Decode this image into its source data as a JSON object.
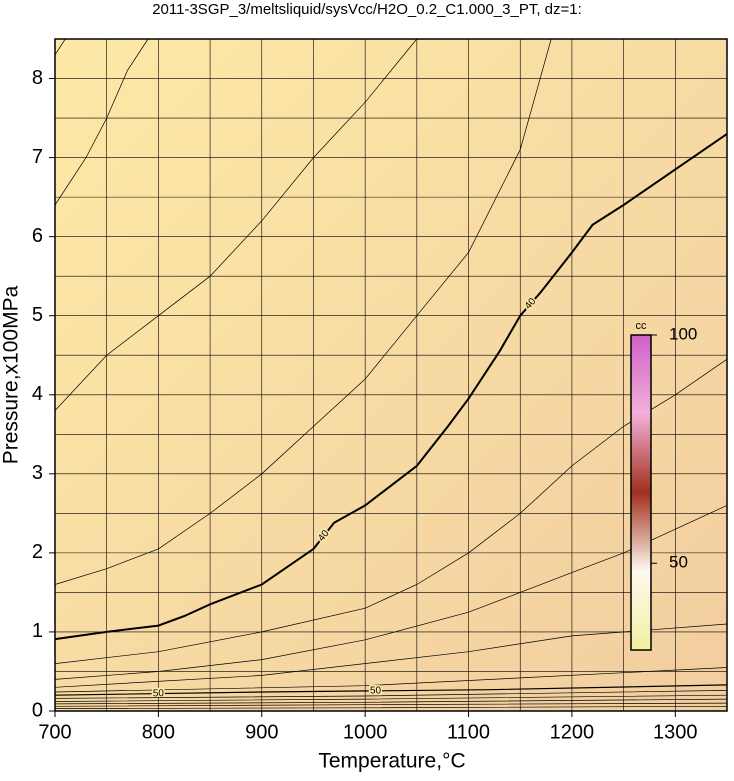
{
  "chart_data": {
    "type": "contour",
    "title": "2011-3SGP_3/meltsliquid/sysVcc/H2O_0.2_C1.000_3_PT, dz=1:",
    "x_label": "Temperature,°C",
    "y_label": "Pressure,x100MPa",
    "xlim": [
      700,
      1350
    ],
    "ylim": [
      0,
      8.5
    ],
    "xticks": [
      700,
      800,
      900,
      1000,
      1100,
      1200,
      1300
    ],
    "yticks": [
      0,
      1,
      2,
      3,
      4,
      5,
      6,
      7,
      8
    ],
    "xgrid": [
      700,
      750,
      800,
      850,
      900,
      950,
      1000,
      1050,
      1100,
      1150,
      1200,
      1250,
      1300,
      1350
    ],
    "ygrid": [
      0.5,
      1,
      1.5,
      2,
      2.5,
      3,
      3.5,
      4,
      4.5,
      5,
      5.5,
      6,
      6.5,
      7,
      7.5,
      8
    ],
    "colorbar": {
      "label": "cc",
      "clim": [
        31,
        100
      ],
      "ticks": [
        50,
        100
      ],
      "colors": [
        "#f3f0a0",
        "#fff8f0",
        "#a0301c",
        "#f2b0d8",
        "#d060c8"
      ]
    },
    "background": [
      "#fde9a6",
      "#f2cda0"
    ],
    "contours": [
      {
        "width": 0.7,
        "x": [
          700,
          710
        ],
        "y": [
          8.3,
          8.5
        ]
      },
      {
        "width": 0.7,
        "x": [
          700,
          730,
          750,
          770,
          790
        ],
        "y": [
          6.4,
          7.0,
          7.5,
          8.1,
          8.5
        ]
      },
      {
        "width": 0.7,
        "x": [
          700,
          750,
          800,
          850,
          900,
          950,
          1000,
          1050
        ],
        "y": [
          3.8,
          4.5,
          5.0,
          5.5,
          6.2,
          7.0,
          7.7,
          8.5
        ]
      },
      {
        "width": 0.7,
        "x": [
          700,
          750,
          800,
          850,
          900,
          950,
          1000,
          1050,
          1100,
          1150,
          1180
        ],
        "y": [
          1.6,
          1.8,
          2.05,
          2.5,
          3.0,
          3.6,
          4.2,
          5.0,
          5.8,
          7.1,
          8.5
        ]
      },
      {
        "width": 2,
        "level": 40,
        "x": [
          700,
          750,
          800,
          825,
          850,
          900,
          950,
          970,
          1000,
          1050,
          1080,
          1100,
          1130,
          1150,
          1170,
          1200,
          1220,
          1250,
          1300,
          1350
        ],
        "y": [
          0.91,
          1.0,
          1.08,
          1.2,
          1.35,
          1.6,
          2.05,
          2.38,
          2.6,
          3.1,
          3.6,
          3.95,
          4.55,
          5.0,
          5.3,
          5.8,
          6.15,
          6.4,
          6.85,
          7.3
        ]
      },
      {
        "width": 0.7,
        "x": [
          700,
          800,
          900,
          1000,
          1050,
          1100,
          1150,
          1200,
          1250,
          1300,
          1350
        ],
        "y": [
          0.6,
          0.75,
          1.0,
          1.3,
          1.6,
          2.0,
          2.5,
          3.1,
          3.6,
          4.0,
          4.45
        ]
      },
      {
        "width": 0.7,
        "x": [
          700,
          800,
          900,
          1000,
          1100,
          1200,
          1250,
          1300,
          1350
        ],
        "y": [
          0.4,
          0.5,
          0.65,
          0.9,
          1.25,
          1.75,
          2.0,
          2.3,
          2.6
        ]
      },
      {
        "width": 0.7,
        "x": [
          700,
          900,
          1100,
          1200,
          1350
        ],
        "y": [
          0.3,
          0.45,
          0.75,
          0.95,
          1.1
        ]
      },
      {
        "width": 0.7,
        "x": [
          700,
          1000,
          1350
        ],
        "y": [
          0.24,
          0.32,
          0.55
        ]
      },
      {
        "width": 1.2,
        "level": 50,
        "x": [
          700,
          900,
          1120,
          1350
        ],
        "y": [
          0.2,
          0.24,
          0.27,
          0.33
        ]
      },
      {
        "width": 0.7,
        "x": [
          700,
          1000,
          1350
        ],
        "y": [
          0.16,
          0.19,
          0.26
        ]
      },
      {
        "width": 0.7,
        "x": [
          700,
          1000,
          1350
        ],
        "y": [
          0.12,
          0.15,
          0.2
        ]
      },
      {
        "width": 0.7,
        "x": [
          700,
          1000,
          1350
        ],
        "y": [
          0.09,
          0.11,
          0.15
        ]
      },
      {
        "width": 0.7,
        "x": [
          700,
          1000,
          1350
        ],
        "y": [
          0.06,
          0.08,
          0.1
        ]
      },
      {
        "width": 0.7,
        "x": [
          700,
          1000,
          1350
        ],
        "y": [
          0.03,
          0.04,
          0.06
        ]
      }
    ]
  }
}
